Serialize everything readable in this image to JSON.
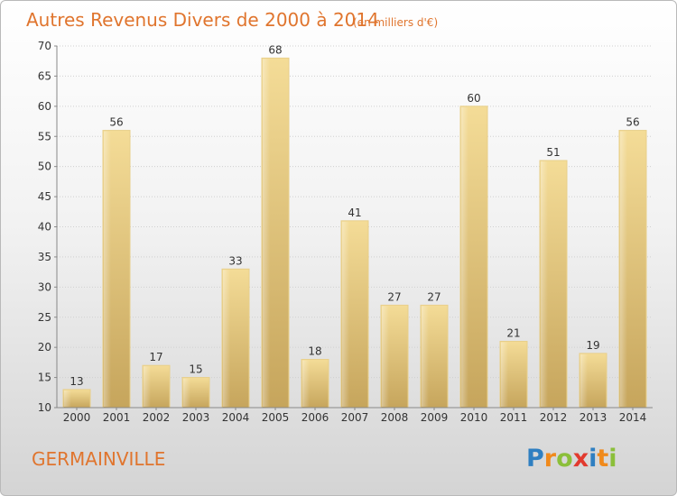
{
  "page": {
    "title": "Autres Revenus Divers de 2000 à 2014",
    "subtitle": "(en milliers d'€)",
    "town": "GERMAINVILLE",
    "logo": {
      "letters": [
        {
          "char": "P",
          "color": "#2f7fc1"
        },
        {
          "char": "r",
          "color": "#f08a1c"
        },
        {
          "char": "o",
          "color": "#8bbf3a"
        },
        {
          "char": "x",
          "color": "#e23a2e"
        },
        {
          "char": "i",
          "color": "#2f7fc1"
        },
        {
          "char": "t",
          "color": "#f08a1c"
        },
        {
          "char": "i",
          "color": "#8bbf3a"
        }
      ]
    }
  },
  "chart_data": {
    "type": "bar",
    "title": "Autres Revenus Divers de 2000 à 2014",
    "subtitle": "(en milliers d'€)",
    "categories": [
      "2000",
      "2001",
      "2002",
      "2003",
      "2004",
      "2005",
      "2006",
      "2007",
      "2008",
      "2009",
      "2010",
      "2011",
      "2012",
      "2013",
      "2014"
    ],
    "values": [
      13,
      56,
      17,
      15,
      33,
      68,
      18,
      41,
      27,
      27,
      60,
      21,
      51,
      19,
      56
    ],
    "ylim": [
      10,
      70
    ],
    "yticks": [
      10,
      15,
      20,
      25,
      30,
      35,
      40,
      45,
      50,
      55,
      60,
      65,
      70
    ],
    "grid": true,
    "bar_color": "#d8b86a",
    "data_labels": true
  }
}
